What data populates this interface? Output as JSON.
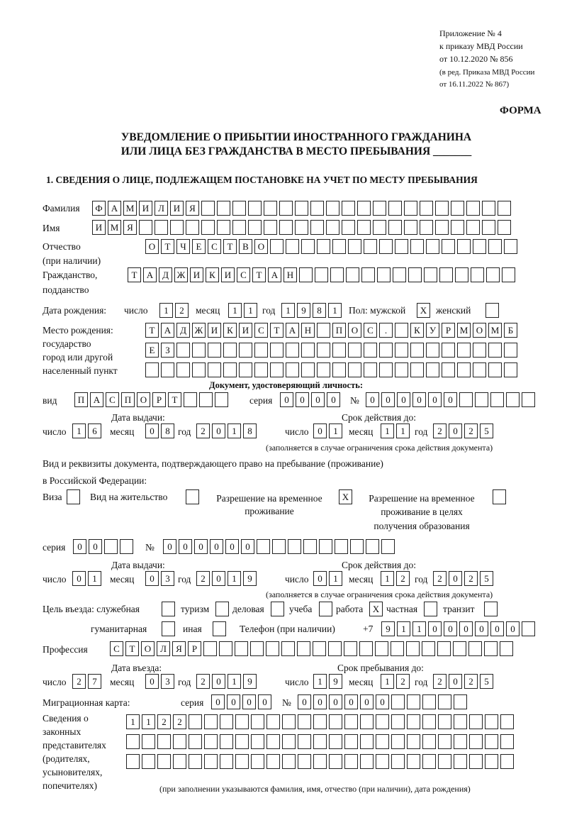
{
  "header": {
    "line1": "Приложение № 4",
    "line2": "к приказу МВД России",
    "line3": "от 10.12.2020 № 856",
    "line4": "(в ред. Приказа МВД России",
    "line5": "от 16.11.2022 № 867)",
    "forma": "ФОРМА"
  },
  "title": {
    "line1": "УВЕДОМЛЕНИЕ О ПРИБЫТИИ ИНОСТРАННОГО ГРАЖДАНИНА",
    "line2": "ИЛИ ЛИЦА БЕЗ ГРАЖДАНСТВА В МЕСТО ПРЕБЫВАНИЯ _______"
  },
  "section1": "1. СВЕДЕНИЯ О ЛИЦЕ, ПОДЛЕЖАЩЕМ ПОСТАНОВКЕ НА УЧЕТ ПО МЕСТУ ПРЕБЫВАНИЯ",
  "labels": {
    "surname": "Фамилия",
    "name": "Имя",
    "patronymic": "Отчество",
    "patronymic2": "(при наличии)",
    "citizenship": "Гражданство,",
    "citizenship2": "подданство",
    "dob": "Дата рождения:",
    "day": "число",
    "month": "месяц",
    "year": "год",
    "sex": "Пол: мужской",
    "female": "женский",
    "pob1": "Место рождения:",
    "pob2": "государство",
    "pob3": "город или другой",
    "pob4": "населенный пункт",
    "id_doc": "Документ, удостоверяющий личность:",
    "kind": "вид",
    "series": "серия",
    "number": "№",
    "issued": "Дата выдачи:",
    "valid": "Срок действия до:",
    "note": "(заполняется в случае ограничения срока действия документа)",
    "right1": "Вид и реквизиты документа, подтверждающего право на пребывание (проживание)",
    "right2": "в Российской Федерации:",
    "visa": "Виза",
    "vnzh": "Вид на жительство",
    "rvp1": "Разрешение на временное",
    "rvp2": "проживание",
    "rvpo1": "Разрешение на временное",
    "rvpo2": "проживание в целях",
    "rvpo3": "получения образования",
    "purpose": "Цель въезда: служебная",
    "tourism": "туризм",
    "business": "деловая",
    "study": "учеба",
    "work": "работа",
    "private": "частная",
    "transit": "транзит",
    "humanitarian": "гуманитарная",
    "other": "иная",
    "phone": "Телефон (при наличии)",
    "phone_prefix": "+7",
    "profession": "Профессия",
    "entry": "Дата въезда:",
    "stay": "Срок пребывания до:",
    "migcard": "Миграционная карта:",
    "rep1": "Сведения о",
    "rep2": "законных",
    "rep3": "представителях",
    "rep4": "(родителях,",
    "rep5": "усыновителях,",
    "rep6": "попечителях)",
    "rep_note": "(при заполнении указываются фамилия, имя, отчество (при наличии), дата рождения)"
  },
  "values": {
    "surname": "ФАМИЛИЯ",
    "name": "ИМЯ",
    "patronymic": "ОТЧЕСТВО",
    "citizenship": "ТАДЖИКИСТАН",
    "dob_day": "12",
    "dob_month": "11",
    "dob_year": "1981",
    "male": "X",
    "female": "",
    "pob1": "ТАДЖИКИСТАН ПОС. КУРМОМБ",
    "pob2": "ЕЗ",
    "pob3": "",
    "doc_kind": "ПАСПОРТ",
    "doc_series": "0000",
    "doc_number": "000000",
    "doc_issued_day": "16",
    "doc_issued_month": "08",
    "doc_issued_year": "2018",
    "doc_valid_day": "01",
    "doc_valid_month": "11",
    "doc_valid_year": "2025",
    "visa": "",
    "vnzh": "",
    "rvp": "X",
    "rvpo": "",
    "right_series": "00",
    "right_number": "000000",
    "right_issued_day": "01",
    "right_issued_month": "03",
    "right_issued_year": "2019",
    "right_valid_day": "01",
    "right_valid_month": "12",
    "right_valid_year": "2025",
    "p_service": "",
    "p_tourism": "",
    "p_business": "",
    "p_study": "",
    "p_work": "X",
    "p_private": "",
    "p_transit": "",
    "p_humanitarian": "",
    "p_other": "",
    "phone": "911000000",
    "profession": "СТОЛЯР",
    "entry_day": "27",
    "entry_month": "03",
    "entry_year": "2019",
    "stay_day": "19",
    "stay_month": "12",
    "stay_year": "2025",
    "mig_series": "0000",
    "mig_number": "000000",
    "rep1": "1122",
    "rep2": "",
    "rep3": ""
  }
}
